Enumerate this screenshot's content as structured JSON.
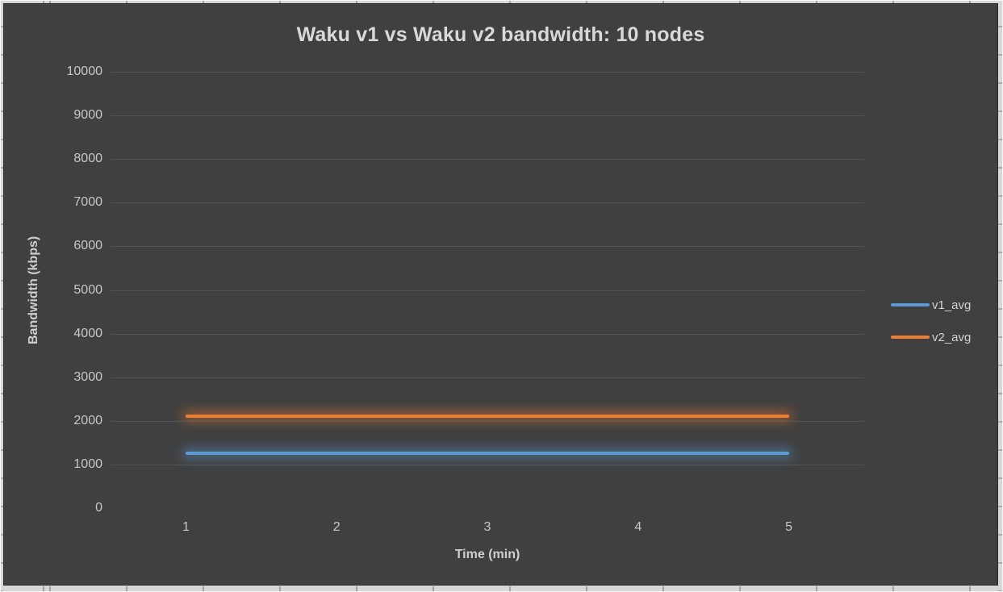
{
  "sheet": {
    "background": "#D8D8D8",
    "gridline_tick_color": "#A2A2A2"
  },
  "chart_data": {
    "type": "line",
    "title": "Waku v1 vs Waku v2 bandwidth: 10 nodes",
    "xlabel": "Time (min)",
    "ylabel": "Bandwidth (kbps)",
    "categories": [
      1,
      2,
      3,
      4,
      5
    ],
    "series": [
      {
        "name": "v1_avg",
        "color": "#5B9BD5",
        "values": [
          1250,
          1250,
          1250,
          1250,
          1250
        ]
      },
      {
        "name": "v2_avg",
        "color": "#ED7D31",
        "values": [
          2100,
          2100,
          2100,
          2100,
          2100
        ]
      }
    ],
    "ylim": [
      0,
      10000
    ],
    "ytick_step": 1000,
    "grid": true,
    "line_effect": "glow",
    "legend_position": "right",
    "colors": {
      "plot_background": "#404040",
      "gridline": "#535353",
      "title_text": "#D9D9D9",
      "axis_text": "#C8C8C8",
      "axis_title_text": "#CFCFCF",
      "legend_text": "#D2D2D2"
    }
  }
}
